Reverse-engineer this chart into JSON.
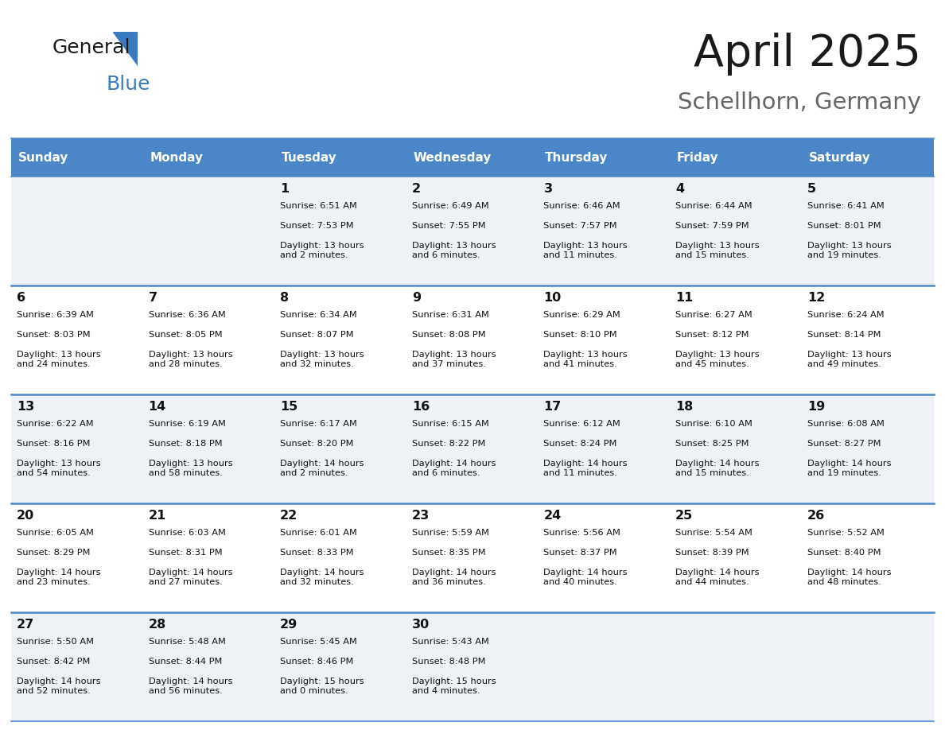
{
  "title": "April 2025",
  "subtitle": "Schellhorn, Germany",
  "header_color": "#4a86c8",
  "header_text_color": "#ffffff",
  "cell_bg_light": "#eef2f7",
  "cell_bg_white": "#ffffff",
  "separator_color": "#4a86c8",
  "day_headers": [
    "Sunday",
    "Monday",
    "Tuesday",
    "Wednesday",
    "Thursday",
    "Friday",
    "Saturday"
  ],
  "weeks": [
    [
      {
        "day": "",
        "sunrise": "",
        "sunset": "",
        "daylight": ""
      },
      {
        "day": "",
        "sunrise": "",
        "sunset": "",
        "daylight": ""
      },
      {
        "day": "1",
        "sunrise": "Sunrise: 6:51 AM",
        "sunset": "Sunset: 7:53 PM",
        "daylight": "Daylight: 13 hours\nand 2 minutes."
      },
      {
        "day": "2",
        "sunrise": "Sunrise: 6:49 AM",
        "sunset": "Sunset: 7:55 PM",
        "daylight": "Daylight: 13 hours\nand 6 minutes."
      },
      {
        "day": "3",
        "sunrise": "Sunrise: 6:46 AM",
        "sunset": "Sunset: 7:57 PM",
        "daylight": "Daylight: 13 hours\nand 11 minutes."
      },
      {
        "day": "4",
        "sunrise": "Sunrise: 6:44 AM",
        "sunset": "Sunset: 7:59 PM",
        "daylight": "Daylight: 13 hours\nand 15 minutes."
      },
      {
        "day": "5",
        "sunrise": "Sunrise: 6:41 AM",
        "sunset": "Sunset: 8:01 PM",
        "daylight": "Daylight: 13 hours\nand 19 minutes."
      }
    ],
    [
      {
        "day": "6",
        "sunrise": "Sunrise: 6:39 AM",
        "sunset": "Sunset: 8:03 PM",
        "daylight": "Daylight: 13 hours\nand 24 minutes."
      },
      {
        "day": "7",
        "sunrise": "Sunrise: 6:36 AM",
        "sunset": "Sunset: 8:05 PM",
        "daylight": "Daylight: 13 hours\nand 28 minutes."
      },
      {
        "day": "8",
        "sunrise": "Sunrise: 6:34 AM",
        "sunset": "Sunset: 8:07 PM",
        "daylight": "Daylight: 13 hours\nand 32 minutes."
      },
      {
        "day": "9",
        "sunrise": "Sunrise: 6:31 AM",
        "sunset": "Sunset: 8:08 PM",
        "daylight": "Daylight: 13 hours\nand 37 minutes."
      },
      {
        "day": "10",
        "sunrise": "Sunrise: 6:29 AM",
        "sunset": "Sunset: 8:10 PM",
        "daylight": "Daylight: 13 hours\nand 41 minutes."
      },
      {
        "day": "11",
        "sunrise": "Sunrise: 6:27 AM",
        "sunset": "Sunset: 8:12 PM",
        "daylight": "Daylight: 13 hours\nand 45 minutes."
      },
      {
        "day": "12",
        "sunrise": "Sunrise: 6:24 AM",
        "sunset": "Sunset: 8:14 PM",
        "daylight": "Daylight: 13 hours\nand 49 minutes."
      }
    ],
    [
      {
        "day": "13",
        "sunrise": "Sunrise: 6:22 AM",
        "sunset": "Sunset: 8:16 PM",
        "daylight": "Daylight: 13 hours\nand 54 minutes."
      },
      {
        "day": "14",
        "sunrise": "Sunrise: 6:19 AM",
        "sunset": "Sunset: 8:18 PM",
        "daylight": "Daylight: 13 hours\nand 58 minutes."
      },
      {
        "day": "15",
        "sunrise": "Sunrise: 6:17 AM",
        "sunset": "Sunset: 8:20 PM",
        "daylight": "Daylight: 14 hours\nand 2 minutes."
      },
      {
        "day": "16",
        "sunrise": "Sunrise: 6:15 AM",
        "sunset": "Sunset: 8:22 PM",
        "daylight": "Daylight: 14 hours\nand 6 minutes."
      },
      {
        "day": "17",
        "sunrise": "Sunrise: 6:12 AM",
        "sunset": "Sunset: 8:24 PM",
        "daylight": "Daylight: 14 hours\nand 11 minutes."
      },
      {
        "day": "18",
        "sunrise": "Sunrise: 6:10 AM",
        "sunset": "Sunset: 8:25 PM",
        "daylight": "Daylight: 14 hours\nand 15 minutes."
      },
      {
        "day": "19",
        "sunrise": "Sunrise: 6:08 AM",
        "sunset": "Sunset: 8:27 PM",
        "daylight": "Daylight: 14 hours\nand 19 minutes."
      }
    ],
    [
      {
        "day": "20",
        "sunrise": "Sunrise: 6:05 AM",
        "sunset": "Sunset: 8:29 PM",
        "daylight": "Daylight: 14 hours\nand 23 minutes."
      },
      {
        "day": "21",
        "sunrise": "Sunrise: 6:03 AM",
        "sunset": "Sunset: 8:31 PM",
        "daylight": "Daylight: 14 hours\nand 27 minutes."
      },
      {
        "day": "22",
        "sunrise": "Sunrise: 6:01 AM",
        "sunset": "Sunset: 8:33 PM",
        "daylight": "Daylight: 14 hours\nand 32 minutes."
      },
      {
        "day": "23",
        "sunrise": "Sunrise: 5:59 AM",
        "sunset": "Sunset: 8:35 PM",
        "daylight": "Daylight: 14 hours\nand 36 minutes."
      },
      {
        "day": "24",
        "sunrise": "Sunrise: 5:56 AM",
        "sunset": "Sunset: 8:37 PM",
        "daylight": "Daylight: 14 hours\nand 40 minutes."
      },
      {
        "day": "25",
        "sunrise": "Sunrise: 5:54 AM",
        "sunset": "Sunset: 8:39 PM",
        "daylight": "Daylight: 14 hours\nand 44 minutes."
      },
      {
        "day": "26",
        "sunrise": "Sunrise: 5:52 AM",
        "sunset": "Sunset: 8:40 PM",
        "daylight": "Daylight: 14 hours\nand 48 minutes."
      }
    ],
    [
      {
        "day": "27",
        "sunrise": "Sunrise: 5:50 AM",
        "sunset": "Sunset: 8:42 PM",
        "daylight": "Daylight: 14 hours\nand 52 minutes."
      },
      {
        "day": "28",
        "sunrise": "Sunrise: 5:48 AM",
        "sunset": "Sunset: 8:44 PM",
        "daylight": "Daylight: 14 hours\nand 56 minutes."
      },
      {
        "day": "29",
        "sunrise": "Sunrise: 5:45 AM",
        "sunset": "Sunset: 8:46 PM",
        "daylight": "Daylight: 15 hours\nand 0 minutes."
      },
      {
        "day": "30",
        "sunrise": "Sunrise: 5:43 AM",
        "sunset": "Sunset: 8:48 PM",
        "daylight": "Daylight: 15 hours\nand 4 minutes."
      },
      {
        "day": "",
        "sunrise": "",
        "sunset": "",
        "daylight": ""
      },
      {
        "day": "",
        "sunrise": "",
        "sunset": "",
        "daylight": ""
      },
      {
        "day": "",
        "sunrise": "",
        "sunset": "",
        "daylight": ""
      }
    ]
  ],
  "logo_color_general": "#1a1a1a",
  "logo_color_blue": "#3a7bbf",
  "title_color": "#1a1a1a",
  "subtitle_color": "#666666"
}
